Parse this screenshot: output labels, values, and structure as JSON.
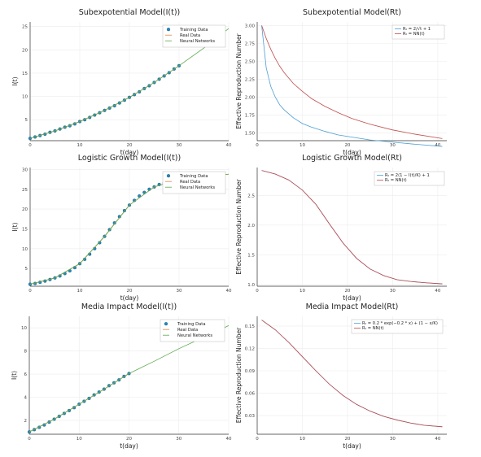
{
  "colors": {
    "training": "#1f8ac4",
    "real": "#e08a3a",
    "nn": "#5aa84b",
    "rt_real": "#4a9fd4",
    "rt_nn": "#c24a4a",
    "grid": "#ececec"
  },
  "chart_data": [
    {
      "type": "line",
      "title": "Subexpotential Model(I(t))",
      "xlabel": "t(day)",
      "ylabel": "I(t)",
      "xlim": [
        0,
        40
      ],
      "ylim": [
        0.5,
        26
      ],
      "xticks": [
        "0",
        "10",
        "20",
        "30",
        "40"
      ],
      "yticks": [
        "5",
        "10",
        "15",
        "20",
        "25"
      ],
      "legend": "top-right",
      "grid": true,
      "series": [
        {
          "name": "Training Data",
          "kind": "scatter",
          "x": [
            0,
            1,
            2,
            3,
            4,
            5,
            6,
            7,
            8,
            9,
            10,
            11,
            12,
            13,
            14,
            15,
            16,
            17,
            18,
            19,
            20,
            21,
            22,
            23,
            24,
            25,
            26,
            27,
            28,
            29,
            30
          ],
          "y": [
            1.0,
            1.3,
            1.6,
            1.9,
            2.3,
            2.6,
            3.0,
            3.4,
            3.7,
            4.1,
            4.6,
            5.0,
            5.5,
            6.0,
            6.5,
            7.0,
            7.5,
            8.0,
            8.6,
            9.2,
            9.8,
            10.4,
            11.0,
            11.7,
            12.3,
            13.0,
            13.7,
            14.4,
            15.1,
            15.9,
            16.6
          ]
        },
        {
          "name": "Real Data",
          "kind": "line",
          "x": [
            0,
            5,
            10,
            15,
            20,
            25,
            30
          ],
          "y": [
            1.0,
            2.6,
            4.6,
            7.0,
            9.8,
            13.0,
            16.6
          ]
        },
        {
          "name": "Neural Networks",
          "kind": "line",
          "x": [
            0,
            5,
            10,
            15,
            20,
            25,
            30,
            35,
            40
          ],
          "y": [
            1.0,
            2.6,
            4.6,
            7.0,
            9.8,
            13.0,
            16.6,
            20.4,
            24.6
          ]
        }
      ]
    },
    {
      "type": "line",
      "title": "Subexpotential Model(Rt)",
      "xlabel": "t(day)",
      "ylabel": "Effective Reproduction Number",
      "xlim": [
        0,
        42
      ],
      "ylim": [
        1.39,
        3.05
      ],
      "xticks": [
        "0",
        "10",
        "20",
        "30",
        "40"
      ],
      "yticks": [
        "1.50",
        "1.75",
        "2.00",
        "2.25",
        "2.50",
        "2.75",
        "3.00"
      ],
      "legend": "top-right",
      "grid": true,
      "series": [
        {
          "name": "R_t = 2/√t + 1",
          "x": [
            1,
            2,
            3,
            4,
            5,
            6,
            8,
            10,
            12,
            15,
            18,
            21,
            25,
            30,
            35,
            41
          ],
          "y": [
            3.0,
            2.41,
            2.15,
            2.0,
            1.89,
            1.82,
            1.71,
            1.63,
            1.58,
            1.52,
            1.47,
            1.44,
            1.4,
            1.37,
            1.34,
            1.31
          ]
        },
        {
          "name": "R_t = NN(t)",
          "x": [
            1,
            2,
            3,
            4,
            5,
            6,
            8,
            10,
            12,
            15,
            18,
            21,
            25,
            30,
            35,
            41
          ],
          "y": [
            3.0,
            2.82,
            2.67,
            2.54,
            2.43,
            2.34,
            2.19,
            2.08,
            1.98,
            1.87,
            1.78,
            1.7,
            1.62,
            1.54,
            1.48,
            1.42
          ]
        }
      ],
      "legend_math": [
        "Rₜ = 2/√t + 1",
        "Rₜ = NN(t)"
      ]
    },
    {
      "type": "line",
      "title": "Logistic Growth Model(I(t))",
      "xlabel": "t(day)",
      "ylabel": "I(t)",
      "xlim": [
        0,
        40
      ],
      "ylim": [
        0.5,
        30.5
      ],
      "xticks": [
        "0",
        "10",
        "20",
        "30",
        "40"
      ],
      "yticks": [
        "5",
        "10",
        "15",
        "20",
        "25",
        "30"
      ],
      "legend": "top-right",
      "grid": true,
      "series": [
        {
          "name": "Training Data",
          "kind": "scatter",
          "x": [
            0,
            1,
            2,
            3,
            4,
            5,
            6,
            7,
            8,
            9,
            10,
            11,
            12,
            13,
            14,
            15,
            16,
            17,
            18,
            19,
            20,
            21,
            22,
            23,
            24,
            25,
            26,
            27,
            28,
            29,
            30
          ],
          "y": [
            1.0,
            1.2,
            1.5,
            1.8,
            2.2,
            2.6,
            3.1,
            3.7,
            4.4,
            5.2,
            6.2,
            7.3,
            8.6,
            10.0,
            11.5,
            13.1,
            14.8,
            16.5,
            18.1,
            19.6,
            21.0,
            22.2,
            23.3,
            24.2,
            25.0,
            25.6,
            26.2,
            26.6,
            27.0,
            27.3,
            27.5
          ]
        },
        {
          "name": "Real Data",
          "kind": "line",
          "x": [
            0,
            5,
            10,
            15,
            20,
            25,
            30,
            35,
            40
          ],
          "y": [
            1.0,
            2.6,
            6.2,
            13.1,
            21.0,
            25.6,
            27.5,
            28.4,
            28.8
          ]
        },
        {
          "name": "Neural Networks",
          "kind": "line",
          "x": [
            0,
            5,
            10,
            15,
            20,
            25,
            30,
            35,
            40
          ],
          "y": [
            1.0,
            2.6,
            6.2,
            13.1,
            21.0,
            25.6,
            27.5,
            28.4,
            28.8
          ]
        }
      ]
    },
    {
      "type": "line",
      "title": "Logistic Growth Model(Rt)",
      "xlabel": "t(day)",
      "ylabel": "Effective Reproduction Number",
      "xlim": [
        0,
        42
      ],
      "ylim": [
        0.97,
        2.97
      ],
      "xticks": [
        "0",
        "10",
        "20",
        "30",
        "40"
      ],
      "yticks": [
        "1.0",
        "1.5",
        "2.0",
        "2.5"
      ],
      "legend": "top-right",
      "grid": true,
      "series": [
        {
          "name": "R_t = 2(1 - I(t)/K) + 1",
          "x": [
            1,
            4,
            7,
            10,
            13,
            16,
            19,
            22,
            25,
            28,
            31,
            34,
            37,
            41
          ],
          "y": [
            2.92,
            2.86,
            2.76,
            2.59,
            2.35,
            2.02,
            1.7,
            1.44,
            1.26,
            1.15,
            1.08,
            1.05,
            1.03,
            1.01
          ]
        },
        {
          "name": "R_t = NN(t)",
          "x": [
            1,
            4,
            7,
            10,
            13,
            16,
            19,
            22,
            25,
            28,
            31,
            34,
            37,
            41
          ],
          "y": [
            2.92,
            2.86,
            2.76,
            2.59,
            2.35,
            2.02,
            1.7,
            1.44,
            1.26,
            1.15,
            1.08,
            1.05,
            1.03,
            1.01
          ]
        }
      ],
      "legend_math": [
        "Rₜ = 2(1 − I(t)/K) + 1",
        "Rₜ = NN(t)"
      ]
    },
    {
      "type": "line",
      "title": "Media Impact Model(I(t))",
      "xlabel": "t(day)",
      "ylabel": "I(t)",
      "xlim": [
        0,
        40
      ],
      "ylim": [
        0.8,
        11
      ],
      "xticks": [
        "0",
        "10",
        "20",
        "30",
        "40"
      ],
      "yticks": [
        "2",
        "4",
        "6",
        "8",
        "10"
      ],
      "legend": "top-right",
      "grid": true,
      "series": [
        {
          "name": "Training Data",
          "kind": "scatter",
          "x": [
            0,
            1,
            2,
            3,
            4,
            5,
            6,
            7,
            8,
            9,
            10,
            11,
            12,
            13,
            14,
            15,
            16,
            17,
            18,
            19,
            20
          ],
          "y": [
            1.0,
            1.2,
            1.4,
            1.6,
            1.85,
            2.1,
            2.35,
            2.6,
            2.85,
            3.1,
            3.4,
            3.65,
            3.9,
            4.2,
            4.45,
            4.7,
            5.0,
            5.25,
            5.5,
            5.8,
            6.05
          ]
        },
        {
          "name": "Real Data",
          "kind": "line",
          "x": [
            0,
            5,
            10,
            15,
            20
          ],
          "y": [
            1.0,
            2.1,
            3.4,
            4.7,
            6.05
          ]
        },
        {
          "name": "Neural Networks",
          "kind": "line",
          "x": [
            0,
            5,
            10,
            15,
            20,
            25,
            30,
            35,
            40
          ],
          "y": [
            1.0,
            2.1,
            3.4,
            4.7,
            6.05,
            7.1,
            8.2,
            9.2,
            10.2
          ]
        }
      ]
    },
    {
      "type": "line",
      "title": "Media Impact Model(Rt)",
      "xlabel": "t(day)",
      "ylabel": "Effective Reproduction Number",
      "xlim": [
        0,
        42
      ],
      "ylim": [
        0.005,
        0.163
      ],
      "xticks": [
        "0",
        "10",
        "20",
        "30",
        "40"
      ],
      "yticks": [
        "0.03",
        "0.06",
        "0.09",
        "0.12",
        "0.15"
      ],
      "legend": "top-right",
      "grid": true,
      "series": [
        {
          "name": "R_t = 0.2*exp(-0.2*x)+(1-x/K)",
          "x": [
            1,
            4,
            7,
            10,
            13,
            16,
            19,
            22,
            25,
            28,
            31,
            34,
            37,
            41
          ],
          "y": [
            0.158,
            0.145,
            0.128,
            0.109,
            0.09,
            0.072,
            0.057,
            0.045,
            0.036,
            0.029,
            0.024,
            0.02,
            0.017,
            0.015
          ]
        },
        {
          "name": "R_t = NN(t)",
          "x": [
            1,
            4,
            7,
            10,
            13,
            16,
            19,
            22,
            25,
            28,
            31,
            34,
            37,
            41
          ],
          "y": [
            0.158,
            0.145,
            0.128,
            0.109,
            0.09,
            0.072,
            0.057,
            0.045,
            0.036,
            0.029,
            0.024,
            0.02,
            0.017,
            0.015
          ]
        }
      ],
      "legend_math": [
        "Rₜ = 0.2 * exp(−0.2 * x) + (1 − x/K)",
        "Rₜ = NN(t)"
      ]
    }
  ]
}
